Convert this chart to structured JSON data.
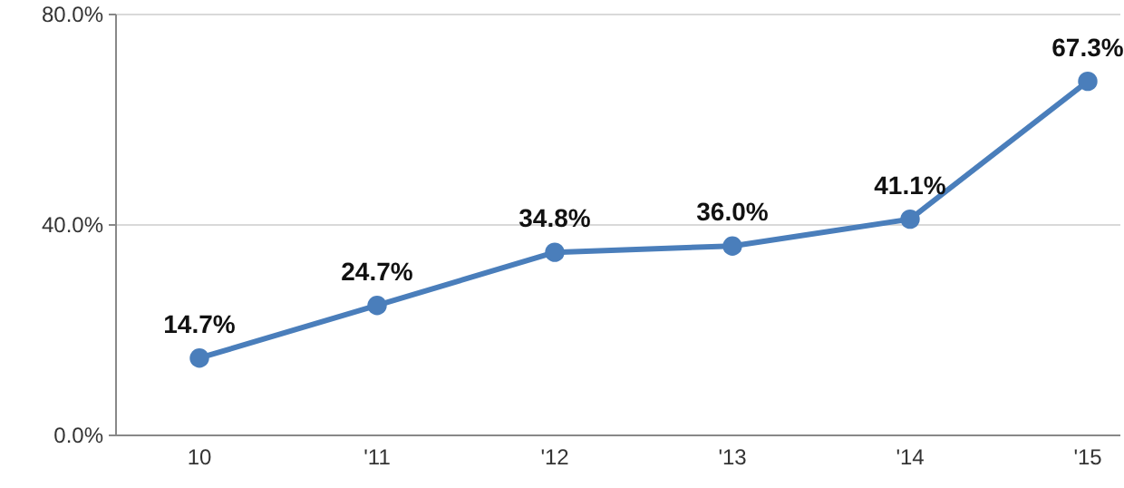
{
  "chart_data": {
    "type": "line",
    "categories": [
      "10",
      "'11",
      "'12",
      "'13",
      "'14",
      "'15"
    ],
    "series": [
      {
        "color": "#4a7ebb",
        "values": [
          14.7,
          24.7,
          34.8,
          36.0,
          41.1,
          67.3
        ],
        "value_labels": [
          "14.7%",
          "24.7%",
          "34.8%",
          "36.0%",
          "41.1%",
          "67.3%"
        ]
      }
    ],
    "ylim": [
      0,
      80
    ],
    "yticks": [
      {
        "value": 0,
        "label": "0.0%"
      },
      {
        "value": 40,
        "label": "40.0%"
      },
      {
        "value": 80,
        "label": "80.0%"
      }
    ],
    "grid": "y",
    "marker": "circle",
    "line_style": "solid"
  }
}
